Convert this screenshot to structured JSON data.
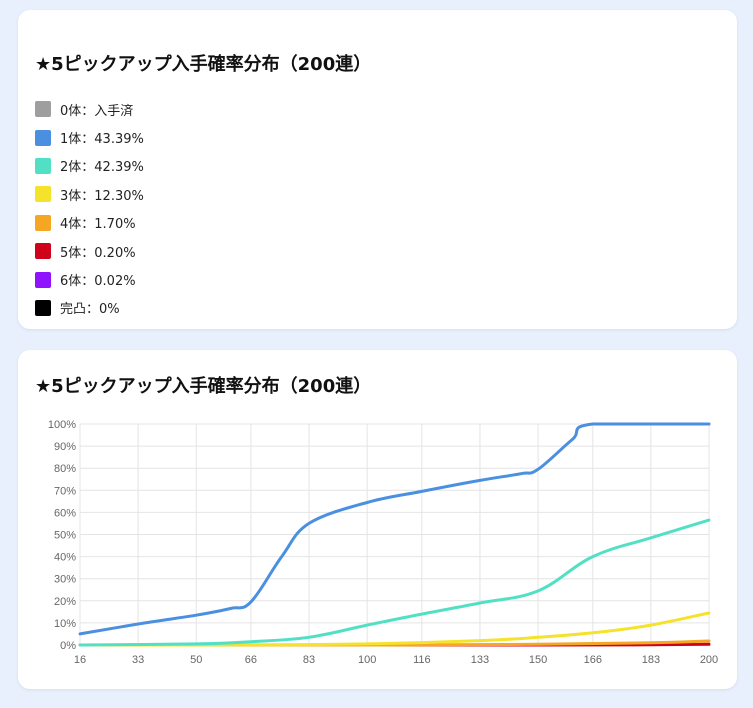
{
  "legend_card": {
    "title": "★5ピックアップ入手確率分布（200連）",
    "items": [
      {
        "label": "0体：入手済",
        "color": "#9e9e9e"
      },
      {
        "label": "1体：43.39%",
        "color": "#4a8fe0"
      },
      {
        "label": "2体：42.39%",
        "color": "#52e0c4"
      },
      {
        "label": "3体：12.30%",
        "color": "#f5e22a"
      },
      {
        "label": "4体：1.70%",
        "color": "#f5a623"
      },
      {
        "label": "5体：0.20%",
        "color": "#d0021b"
      },
      {
        "label": "6体：0.02%",
        "color": "#9013fe"
      },
      {
        "label": "完凸：0%",
        "color": "#000000"
      }
    ]
  },
  "chart_card": {
    "title": "★5ピックアップ入手確率分布（200連）"
  },
  "chart_data": {
    "type": "line",
    "title": "★5ピックアップ入手確率分布（200連）",
    "x": [
      16,
      33,
      50,
      66,
      83,
      100,
      116,
      133,
      150,
      166,
      183,
      200
    ],
    "xlim": [
      16,
      200
    ],
    "x_ticks": [
      "16",
      "33",
      "50",
      "66",
      "83",
      "100",
      "116",
      "133",
      "150",
      "166",
      "183",
      "200"
    ],
    "ylim": [
      0,
      100
    ],
    "y_ticks": [
      "0%",
      "10%",
      "20%",
      "30%",
      "40%",
      "50%",
      "60%",
      "70%",
      "80%",
      "90%",
      "100%"
    ],
    "grid": true,
    "series": [
      {
        "color": "#4a8fe0",
        "x": [
          16,
          33,
          50,
          60,
          66,
          75,
          83,
          100,
          116,
          133,
          145,
          150,
          160,
          166,
          200
        ],
        "values": [
          5,
          9.5,
          13.5,
          16.5,
          19.5,
          40,
          55,
          64.5,
          69.5,
          74.5,
          77.5,
          79.5,
          93,
          100,
          100
        ]
      },
      {
        "color": "#52e0c4",
        "x": [
          16,
          50,
          66,
          83,
          100,
          116,
          133,
          150,
          166,
          183,
          200
        ],
        "values": [
          0,
          0.5,
          1.5,
          3.5,
          9,
          14,
          19,
          24.5,
          40,
          48.5,
          56.5
        ]
      },
      {
        "color": "#f5e22a",
        "x": [
          16,
          66,
          100,
          133,
          150,
          166,
          183,
          200
        ],
        "values": [
          0,
          0.1,
          0.5,
          2,
          3.5,
          5.5,
          9,
          14.5
        ]
      },
      {
        "color": "#f5a623",
        "x": [
          16,
          100,
          150,
          183,
          200
        ],
        "values": [
          0,
          0,
          0.3,
          1,
          1.8
        ]
      },
      {
        "color": "#d0021b",
        "x": [
          16,
          150,
          183,
          200
        ],
        "values": [
          0,
          0,
          0.1,
          0.3
        ]
      }
    ]
  }
}
